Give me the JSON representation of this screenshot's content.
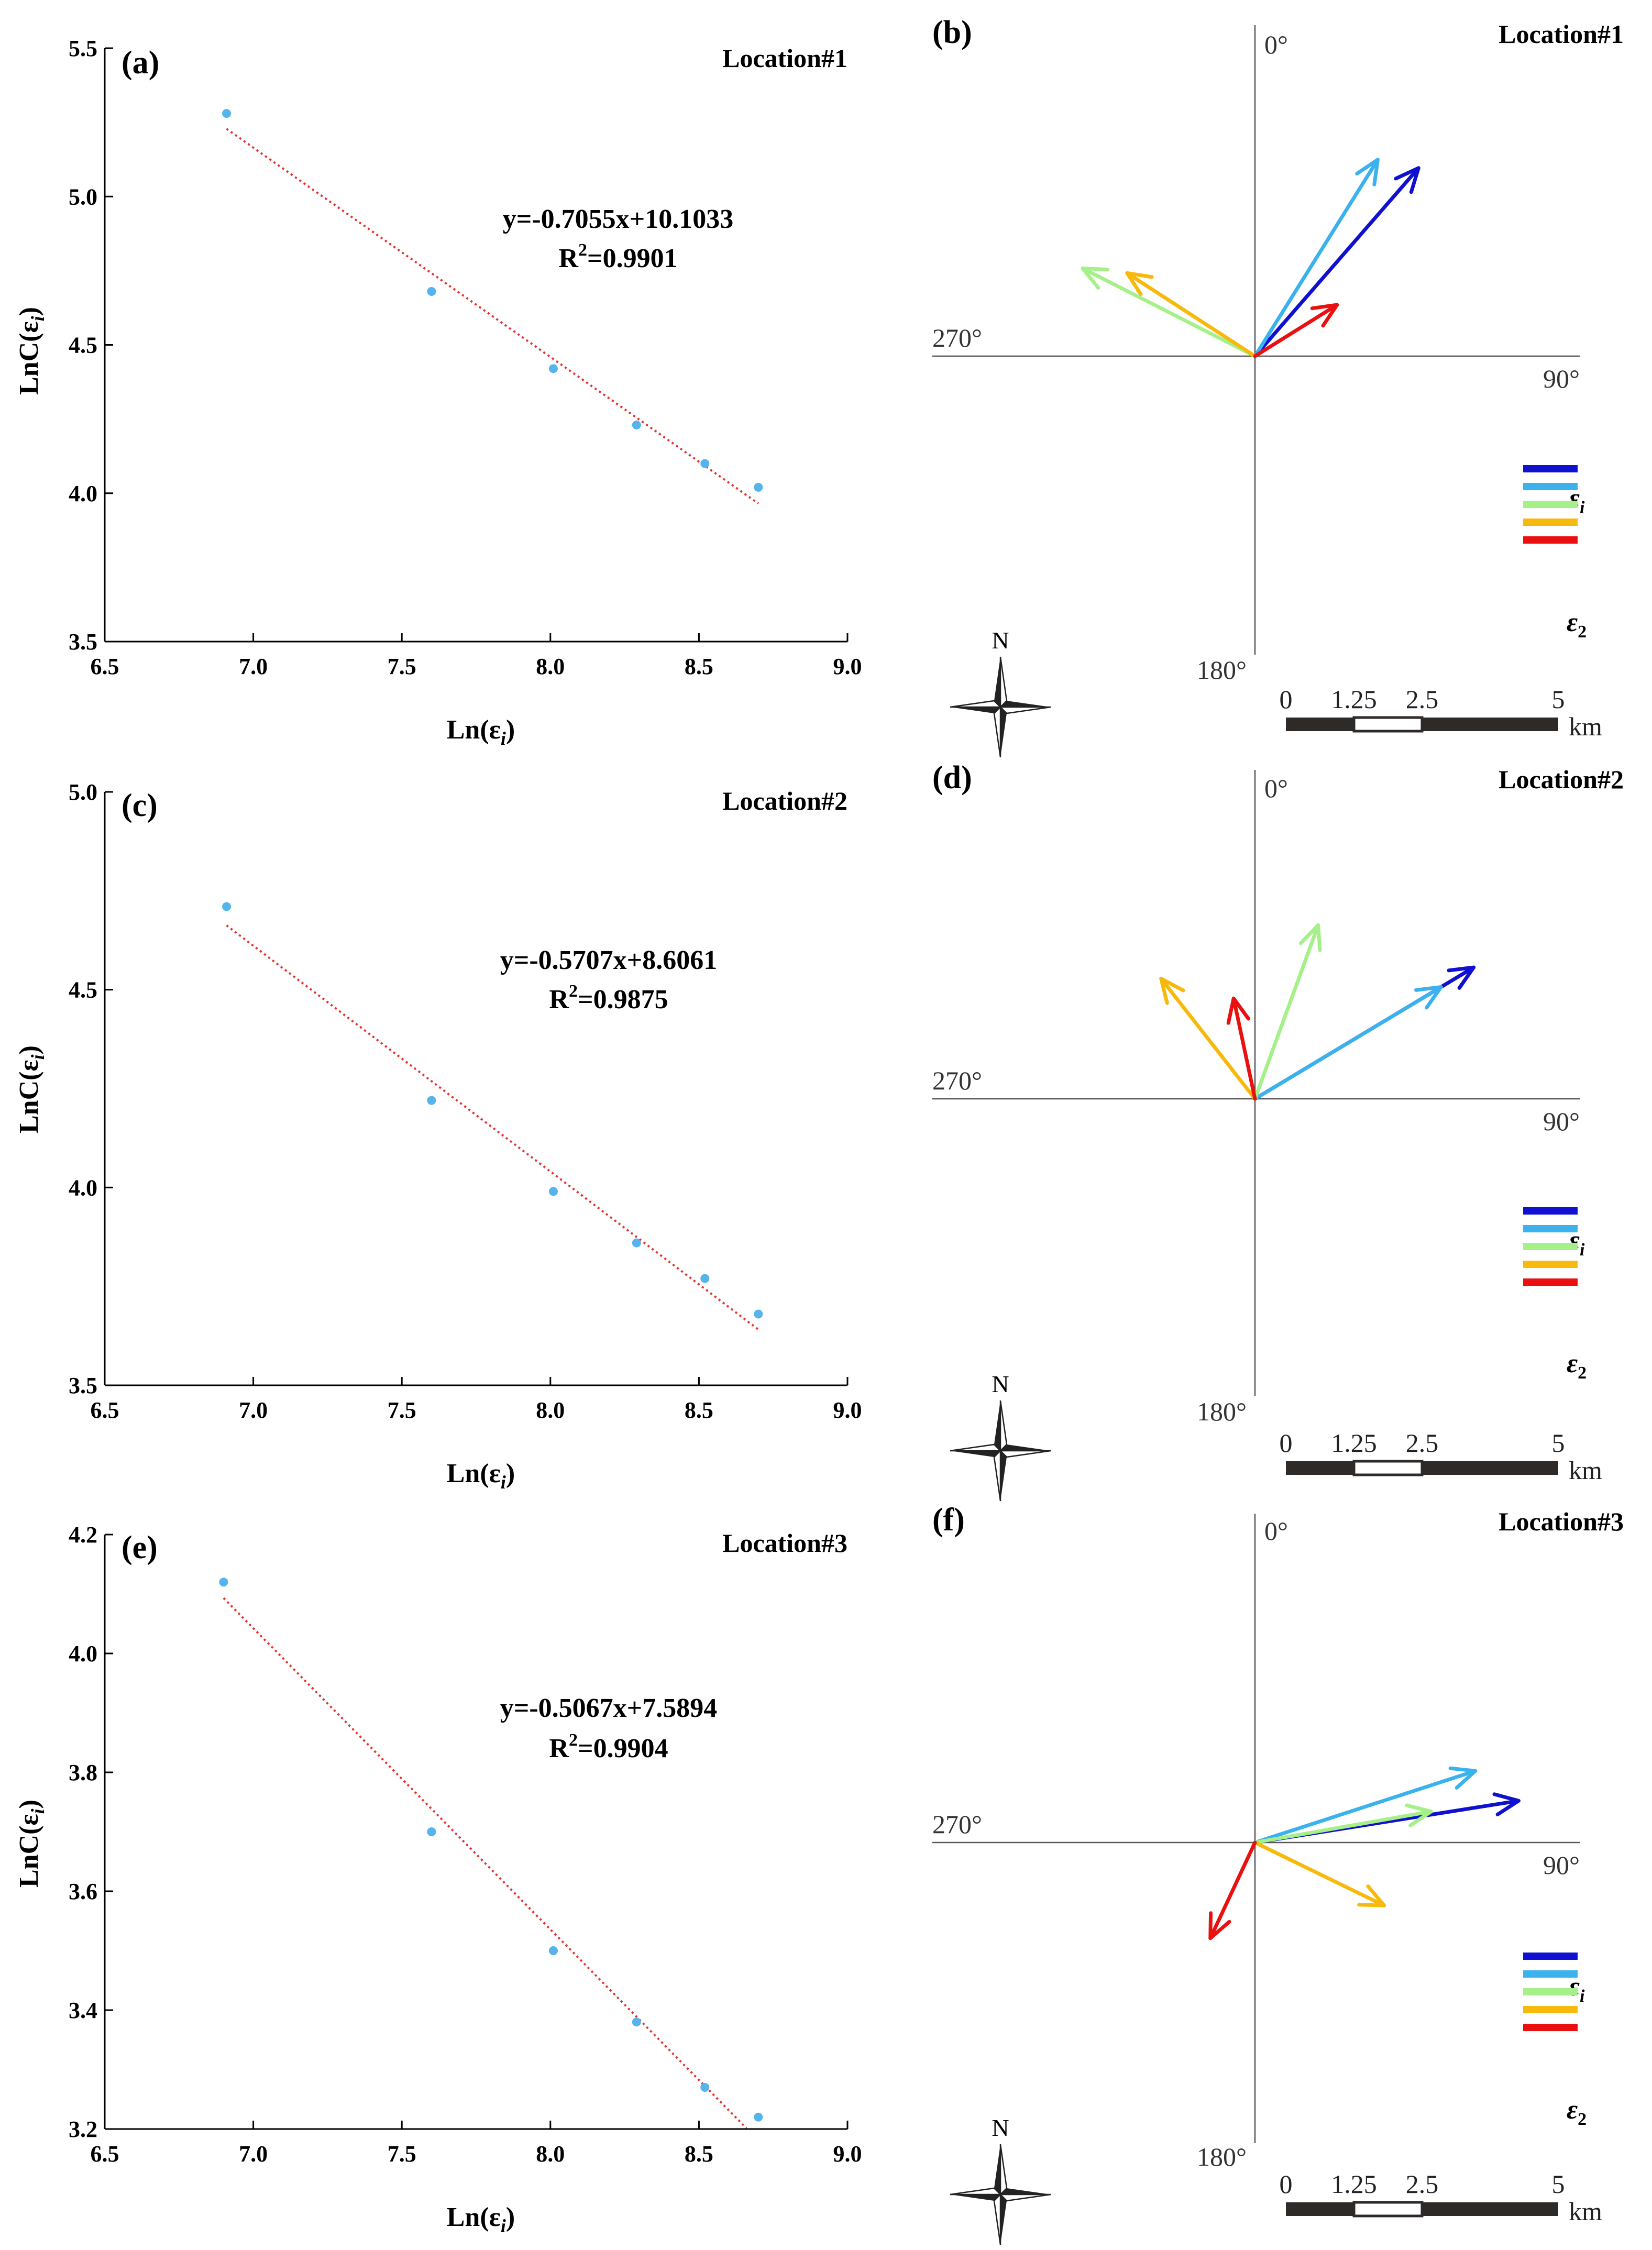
{
  "chart_data": [
    {
      "type": "scatter",
      "panel": "(a)",
      "location": "Location#1",
      "xlabel": "Ln(ε",
      "xlabel_sub": "i",
      "xlabel_end": ")",
      "ylabel": "LnC(ε",
      "ylabel_sub": "i",
      "ylabel_end": ")",
      "xlim": [
        6.5,
        9.0
      ],
      "ylim": [
        3.5,
        5.5
      ],
      "xticks": [
        6.5,
        7.0,
        7.5,
        8.0,
        8.5,
        9.0
      ],
      "yticks": [
        3.5,
        4.0,
        4.5,
        5.0,
        5.5
      ],
      "xtick_labels": [
        "6.5",
        "7.0",
        "7.5",
        "8.0",
        "8.5",
        "9.0"
      ],
      "ytick_labels": [
        "3.5",
        "4.0",
        "4.5",
        "5.0",
        "5.5"
      ],
      "x": [
        6.91,
        7.6,
        8.01,
        8.29,
        8.52,
        8.7
      ],
      "y": [
        5.28,
        4.68,
        4.42,
        4.23,
        4.1,
        4.02
      ],
      "fit": {
        "slope": -0.7055,
        "intercept": 10.1033,
        "x_range": [
          6.91,
          8.7
        ]
      },
      "equation": "y=-0.7055x+10.1033",
      "r2_prefix": "R",
      "r2_exp": "2",
      "r2_value": "=0.9901"
    },
    {
      "type": "scatter",
      "panel": "(c)",
      "location": "Location#2",
      "xlabel": "Ln(ε",
      "xlabel_sub": "i",
      "xlabel_end": ")",
      "ylabel": "LnC(ε",
      "ylabel_sub": "i",
      "ylabel_end": ")",
      "xlim": [
        6.5,
        9.0
      ],
      "ylim": [
        3.5,
        5.0
      ],
      "xticks": [
        6.5,
        7.0,
        7.5,
        8.0,
        8.5,
        9.0
      ],
      "yticks": [
        3.5,
        4.0,
        4.5,
        5.0
      ],
      "xtick_labels": [
        "6.5",
        "7.0",
        "7.5",
        "8.0",
        "8.5",
        "9.0"
      ],
      "ytick_labels": [
        "3.5",
        "4.0",
        "4.5",
        "5.0"
      ],
      "x": [
        6.91,
        7.6,
        8.01,
        8.29,
        8.52,
        8.7
      ],
      "y": [
        4.71,
        4.22,
        3.99,
        3.86,
        3.77,
        3.68
      ],
      "fit": {
        "slope": -0.5707,
        "intercept": 8.6061,
        "x_range": [
          6.91,
          8.7
        ]
      },
      "equation": "y=-0.5707x+8.6061",
      "r2_prefix": "R",
      "r2_exp": "2",
      "r2_value": "=0.9875"
    },
    {
      "type": "scatter",
      "panel": "(e)",
      "location": "Location#3",
      "xlabel": "Ln(ε",
      "xlabel_sub": "i",
      "xlabel_end": ")",
      "ylabel": "LnC(ε",
      "ylabel_sub": "i",
      "ylabel_end": ")",
      "xlim": [
        6.5,
        9.0
      ],
      "ylim": [
        3.2,
        4.2
      ],
      "xticks": [
        6.5,
        7.0,
        7.5,
        8.0,
        8.5,
        9.0
      ],
      "yticks": [
        3.2,
        3.4,
        3.6,
        3.8,
        4.0,
        4.2
      ],
      "xtick_labels": [
        "6.5",
        "7.0",
        "7.5",
        "8.0",
        "8.5",
        "9.0"
      ],
      "ytick_labels": [
        "3.2",
        "3.4",
        "3.6",
        "3.8",
        "4.0",
        "4.2"
      ],
      "x": [
        6.9,
        7.6,
        8.01,
        8.29,
        8.52,
        8.7
      ],
      "y": [
        4.12,
        3.7,
        3.5,
        3.38,
        3.27,
        3.22
      ],
      "fit": {
        "slope": -0.5067,
        "intercept": 7.5894,
        "x_range": [
          6.9,
          8.66
        ]
      },
      "equation": "y=-0.5067x+7.5894",
      "r2_prefix": "R",
      "r2_exp": "2",
      "r2_value": "=0.9904"
    }
  ],
  "rose_diagrams": [
    {
      "panel": "(b)",
      "location": "Location#1",
      "vectors": [
        {
          "level": 1,
          "azimuth": 41,
          "length": 0.85
        },
        {
          "level": 2,
          "azimuth": 32,
          "length": 0.79
        },
        {
          "level": 3,
          "azimuth": 297,
          "length": 0.66
        },
        {
          "level": 4,
          "azimuth": 303,
          "length": 0.52
        },
        {
          "level": 5,
          "azimuth": 58,
          "length": 0.33
        }
      ]
    },
    {
      "panel": "(d)",
      "location": "Location#2",
      "vectors": [
        {
          "level": 1,
          "azimuth": 59,
          "length": 0.87
        },
        {
          "level": 2,
          "azimuth": 59,
          "length": 0.74
        },
        {
          "level": 3,
          "azimuth": 20,
          "length": 0.63
        },
        {
          "level": 4,
          "azimuth": 322,
          "length": 0.52
        },
        {
          "level": 5,
          "azimuth": 348,
          "length": 0.35
        }
      ]
    },
    {
      "panel": "(f)",
      "location": "Location#3",
      "vectors": [
        {
          "level": 1,
          "azimuth": 81,
          "length": 0.91
        },
        {
          "level": 2,
          "azimuth": 72,
          "length": 0.79
        },
        {
          "level": 3,
          "azimuth": 80,
          "length": 0.61
        },
        {
          "level": 4,
          "azimuth": 116,
          "length": 0.49
        },
        {
          "level": 5,
          "azimuth": 205,
          "length": 0.36
        }
      ]
    }
  ],
  "rose_common": {
    "deg_0": "0°",
    "deg_90": "90°",
    "deg_180": "180°",
    "deg_270": "270°",
    "compass_label": "N",
    "scale_labels": [
      "0",
      "1.25",
      "2.5",
      "5"
    ],
    "scale_unit": "km",
    "legend_top": "ε",
    "legend_top_sub": "i",
    "legend_bottom": "ε",
    "legend_bottom_sub": "2"
  },
  "colors": {
    "point": "#55b4ec",
    "fit_line": "#e8302a",
    "level_1": "#1010d0",
    "level_2": "#3bb2ee",
    "level_3": "#a6f08a",
    "level_4": "#f7b90c",
    "level_5": "#ea1010",
    "scale_bar": "#2e2a28"
  }
}
